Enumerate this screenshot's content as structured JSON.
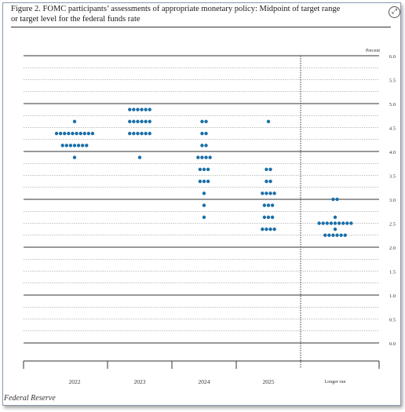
{
  "figure": {
    "title_line1": "Figure 2.  FOMC participants’ assessments of appropriate monetary policy:  Midpoint of target range",
    "title_line2": "or target level for the federal funds rate",
    "expand_icon": "⤢",
    "source": "Federal Reserve"
  },
  "chart_data": {
    "type": "scatter",
    "title": "Figure 2.  FOMC participants’ assessments of appropriate monetary policy:  Midpoint of target range or target level for the federal funds rate",
    "ylabel": "Percent",
    "ylim": [
      0,
      6.0
    ],
    "ytick_labels": [
      "0.0",
      "0.5",
      "1.0",
      "1.5",
      "2.0",
      "2.5",
      "3.0",
      "3.5",
      "4.0",
      "4.5",
      "5.0",
      "5.5",
      "6.0"
    ],
    "categories": [
      "2022",
      "2023",
      "2024",
      "2025",
      "Longer run"
    ],
    "dot_color": "#1a6fa8",
    "dots": [
      {
        "category": "2022",
        "rows": [
          {
            "y": 4.625,
            "count": 1
          },
          {
            "y": 4.375,
            "count": 10
          },
          {
            "y": 4.125,
            "count": 7
          },
          {
            "y": 3.875,
            "count": 1
          }
        ]
      },
      {
        "category": "2023",
        "rows": [
          {
            "y": 4.875,
            "count": 6
          },
          {
            "y": 4.625,
            "count": 6
          },
          {
            "y": 4.375,
            "count": 6
          },
          {
            "y": 3.875,
            "count": 1
          }
        ]
      },
      {
        "category": "2024",
        "rows": [
          {
            "y": 4.625,
            "count": 2
          },
          {
            "y": 4.375,
            "count": 2
          },
          {
            "y": 4.125,
            "count": 2
          },
          {
            "y": 3.875,
            "count": 4
          },
          {
            "y": 3.625,
            "count": 3
          },
          {
            "y": 3.375,
            "count": 3
          },
          {
            "y": 3.125,
            "count": 1
          },
          {
            "y": 2.875,
            "count": 1
          },
          {
            "y": 2.625,
            "count": 1
          }
        ]
      },
      {
        "category": "2025",
        "rows": [
          {
            "y": 4.625,
            "count": 1
          },
          {
            "y": 3.625,
            "count": 2
          },
          {
            "y": 3.375,
            "count": 2
          },
          {
            "y": 3.125,
            "count": 4
          },
          {
            "y": 2.875,
            "count": 3
          },
          {
            "y": 2.625,
            "count": 3
          },
          {
            "y": 2.375,
            "count": 4
          }
        ]
      },
      {
        "category": "Longer run",
        "rows": [
          {
            "y": 3.0,
            "count": 2
          },
          {
            "y": 2.625,
            "count": 1
          },
          {
            "y": 2.5,
            "count": 9
          },
          {
            "y": 2.375,
            "count": 1
          },
          {
            "y": 2.25,
            "count": 6
          }
        ]
      }
    ],
    "grid": true,
    "legend": "none"
  }
}
